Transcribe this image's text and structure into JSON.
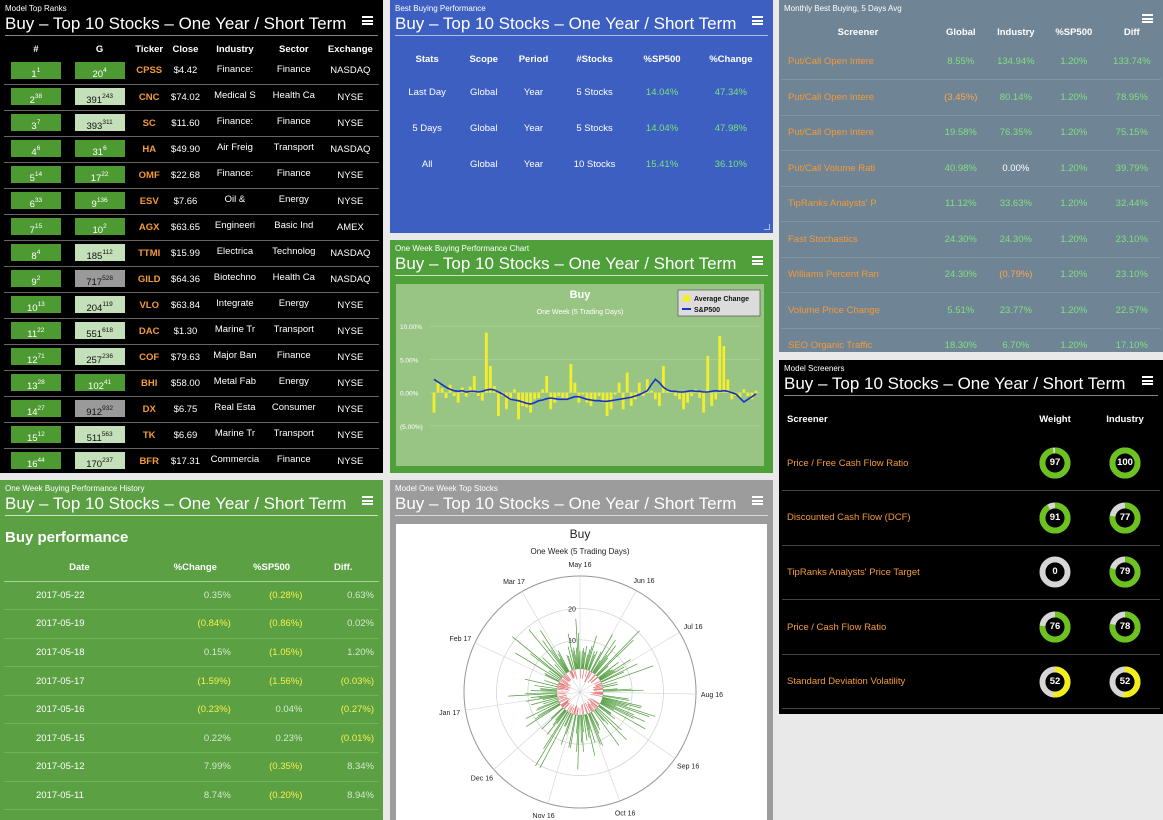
{
  "common_title": "Buy – Top 10 Stocks – One Year / Short Term",
  "top_ranks": {
    "tag": "Model Top Ranks",
    "headers": [
      "#",
      "G",
      "Ticker",
      "Close",
      "Industry",
      "Sector",
      "Exchange"
    ],
    "rows": [
      {
        "rank": "1",
        "rank_sup": "1",
        "g": "20",
        "g_sup": "4",
        "g_style": "dark",
        "ticker": "CPSS",
        "close": "$4.42",
        "industry": "Finance:",
        "sector": "Finance",
        "exchange": "NASDAQ"
      },
      {
        "rank": "2",
        "rank_sup": "38",
        "g": "391",
        "g_sup": "243",
        "g_style": "light",
        "ticker": "CNC",
        "close": "$74.02",
        "industry": "Medical S",
        "sector": "Health Ca",
        "exchange": "NYSE"
      },
      {
        "rank": "3",
        "rank_sup": "7",
        "g": "393",
        "g_sup": "311",
        "g_style": "light",
        "ticker": "SC",
        "close": "$11.60",
        "industry": "Finance:",
        "sector": "Finance",
        "exchange": "NYSE"
      },
      {
        "rank": "4",
        "rank_sup": "6",
        "g": "31",
        "g_sup": "6",
        "g_style": "dark",
        "ticker": "HA",
        "close": "$49.90",
        "industry": "Air Freig",
        "sector": "Transport",
        "exchange": "NASDAQ"
      },
      {
        "rank": "5",
        "rank_sup": "14",
        "g": "17",
        "g_sup": "22",
        "g_style": "dark",
        "ticker": "OMF",
        "close": "$22.68",
        "industry": "Finance:",
        "sector": "Finance",
        "exchange": "NYSE"
      },
      {
        "rank": "6",
        "rank_sup": "33",
        "g": "9",
        "g_sup": "136",
        "g_style": "dark",
        "ticker": "ESV",
        "close": "$7.66",
        "industry": "Oil &",
        "sector": "Energy",
        "exchange": "NYSE"
      },
      {
        "rank": "7",
        "rank_sup": "15",
        "g": "10",
        "g_sup": "2",
        "g_style": "dark",
        "ticker": "AGX",
        "close": "$63.65",
        "industry": "Engineeri",
        "sector": "Basic Ind",
        "exchange": "AMEX"
      },
      {
        "rank": "8",
        "rank_sup": "4",
        "g": "185",
        "g_sup": "112",
        "g_style": "light",
        "ticker": "TTMI",
        "close": "$15.99",
        "industry": "Electrica",
        "sector": "Technolog",
        "exchange": "NASDAQ"
      },
      {
        "rank": "9",
        "rank_sup": "2",
        "g": "717",
        "g_sup": "528",
        "g_style": "gray",
        "ticker": "GILD",
        "close": "$64.36",
        "industry": "Biotechno",
        "sector": "Health Ca",
        "exchange": "NASDAQ"
      },
      {
        "rank": "10",
        "rank_sup": "13",
        "g": "204",
        "g_sup": "119",
        "g_style": "light",
        "ticker": "VLO",
        "close": "$63.84",
        "industry": "Integrate",
        "sector": "Energy",
        "exchange": "NYSE"
      },
      {
        "rank": "11",
        "rank_sup": "22",
        "g": "551",
        "g_sup": "618",
        "g_style": "light",
        "ticker": "DAC",
        "close": "$1.30",
        "industry": "Marine Tr",
        "sector": "Transport",
        "exchange": "NYSE"
      },
      {
        "rank": "12",
        "rank_sup": "71",
        "g": "257",
        "g_sup": "236",
        "g_style": "light",
        "ticker": "COF",
        "close": "$79.63",
        "industry": "Major Ban",
        "sector": "Finance",
        "exchange": "NYSE"
      },
      {
        "rank": "13",
        "rank_sup": "28",
        "g": "102",
        "g_sup": "41",
        "g_style": "dark",
        "ticker": "BHI",
        "close": "$58.00",
        "industry": "Metal Fab",
        "sector": "Energy",
        "exchange": "NYSE"
      },
      {
        "rank": "14",
        "rank_sup": "27",
        "g": "912",
        "g_sup": "932",
        "g_style": "gray",
        "ticker": "DX",
        "close": "$6.75",
        "industry": "Real Esta",
        "sector": "Consumer",
        "exchange": "NYSE"
      },
      {
        "rank": "15",
        "rank_sup": "12",
        "g": "511",
        "g_sup": "563",
        "g_style": "light",
        "ticker": "TK",
        "close": "$6.69",
        "industry": "Marine Tr",
        "sector": "Transport",
        "exchange": "NYSE"
      },
      {
        "rank": "16",
        "rank_sup": "44",
        "g": "170",
        "g_sup": "237",
        "g_style": "light",
        "ticker": "BFR",
        "close": "$17.31",
        "industry": "Commercia",
        "sector": "Finance",
        "exchange": "NYSE"
      }
    ]
  },
  "best_buying": {
    "tag": "Best Buying Performance",
    "headers": [
      "Stats",
      "Scope",
      "Period",
      "#Stocks",
      "%SP500",
      "%Change"
    ],
    "rows": [
      [
        "Last Day",
        "Global",
        "Year",
        "5 Stocks",
        "14.04%",
        "47.34%"
      ],
      [
        "5 Days",
        "Global",
        "Year",
        "5 Stocks",
        "14.04%",
        "47.98%"
      ],
      [
        "All",
        "Global",
        "Year",
        "10 Stocks",
        "15.41%",
        "36.10%"
      ]
    ]
  },
  "monthly": {
    "tag": "Monthly Best Buying, 5 Days Avg",
    "headers": [
      "Screener",
      "Global",
      "Industry",
      "%SP500",
      "Diff"
    ],
    "rows": [
      {
        "name": "Put/Call Open Intere",
        "global": "8.55%",
        "global_c": "g",
        "industry": "134.94%",
        "industry_c": "g",
        "sp": "1.20%",
        "diff": "133.74%"
      },
      {
        "name": "Put/Call Open Intere",
        "global": "(3.45%)",
        "global_c": "o",
        "industry": "80.14%",
        "industry_c": "g",
        "sp": "1.20%",
        "diff": "78.95%"
      },
      {
        "name": "Put/Call Open Intere",
        "global": "19.58%",
        "global_c": "g",
        "industry": "76.35%",
        "industry_c": "g",
        "sp": "1.20%",
        "diff": "75.15%"
      },
      {
        "name": "Put/Call Volume Rati",
        "global": "40.98%",
        "global_c": "g",
        "industry": "0.00%",
        "industry_c": "w",
        "sp": "1.20%",
        "diff": "39.79%"
      },
      {
        "name": "TipRanks Analysts' P",
        "global": "11.12%",
        "global_c": "g",
        "industry": "33.63%",
        "industry_c": "g",
        "sp": "1.20%",
        "diff": "32.44%"
      },
      {
        "name": "Fast Stochastics",
        "global": "24.30%",
        "global_c": "g",
        "industry": "24.30%",
        "industry_c": "g",
        "sp": "1.20%",
        "diff": "23.10%"
      },
      {
        "name": "Williams Percent Ran",
        "global": "24.30%",
        "global_c": "g",
        "industry": "(0.79%)",
        "industry_c": "o",
        "sp": "1.20%",
        "diff": "23.10%"
      },
      {
        "name": "Volume Price Change",
        "global": "5.51%",
        "global_c": "g",
        "industry": "23.77%",
        "industry_c": "g",
        "sp": "1.20%",
        "diff": "22.57%"
      },
      {
        "name": "SEO Organic Traffic",
        "global": "18.30%",
        "global_c": "g",
        "industry": "6.70%",
        "industry_c": "g",
        "sp": "1.20%",
        "diff": "17.10%"
      }
    ]
  },
  "week_chart": {
    "tag": "One Week Buying Performance Chart",
    "chart_data": {
      "type": "bar",
      "title": "Buy",
      "subtitle": "One Week (5 Trading Days)",
      "ylim": [
        -5,
        10
      ],
      "yticks": [
        "10.00%",
        "5.00%",
        "0.00%",
        "(5.00%)"
      ],
      "legend": "top-right",
      "series": [
        {
          "name": "Average Change",
          "type": "bar",
          "color": "#f2ee2e",
          "values": [
            -3.0,
            1.5,
            0.7,
            -0.8,
            1.2,
            -0.5,
            -1.5,
            0.8,
            -0.6,
            0.9,
            2.5,
            -0.5,
            -1.2,
            9.0,
            4.0,
            1.0,
            -3.5,
            -0.5,
            -2.5,
            -1.0,
            0.5,
            -4.0,
            -2.0,
            -2.2,
            -3.0,
            -1.0,
            -0.8,
            0.5,
            2.5,
            -2.5,
            -1.5,
            -0.5,
            -0.8,
            -1.0,
            4.3,
            1.5,
            -1.5,
            -0.3,
            -1.5,
            -2.0,
            -1.0,
            -0.5,
            -1.5,
            -3.5,
            -2.5,
            -0.3,
            1.5,
            -2.5,
            3.0,
            -2.0,
            -1.0,
            1.5,
            -0.5,
            2.0,
            0.3,
            -1.0,
            -2.0,
            4.0,
            0.5,
            0.3,
            -0.5,
            -1.0,
            -2.5,
            -1.5,
            -0.5,
            0.5,
            -0.8,
            -3.0,
            5.5,
            -2.0,
            -1.0,
            8.5,
            7.0,
            2.0,
            -1.0,
            -0.5,
            -0.8,
            0.5,
            -0.5,
            -1.0,
            0.3
          ]
        },
        {
          "name": "S&P500",
          "type": "line",
          "color": "#1a32c4",
          "values": [
            2.0,
            1.6,
            1.2,
            0.8,
            0.5,
            0.3,
            0.2,
            0.3,
            0.1,
            0.2,
            0.2,
            0.1,
            0.2,
            0.4,
            0.5,
            0.4,
            0.1,
            -0.2,
            -0.6,
            -1.0,
            -1.1,
            -1.2,
            -1.4,
            -1.6,
            -1.7,
            -1.5,
            -1.2,
            -1.1,
            -0.9,
            -0.8,
            -0.9,
            -1.0,
            -1.0,
            -1.0,
            -0.8,
            -0.6,
            -0.6,
            -0.8,
            -1.0,
            -1.1,
            -1.2,
            -1.2,
            -1.3,
            -1.3,
            -1.2,
            -1.1,
            -1.0,
            -0.9,
            -0.8,
            -0.7,
            -0.5,
            -0.3,
            0.0,
            0.3,
            1.2,
            2.0,
            1.5,
            0.8,
            0.4,
            0.2,
            0.2,
            0.1,
            0.1,
            0.2,
            0.3,
            0.2,
            0.2,
            0.1,
            0.1,
            0.2,
            0.3,
            0.2,
            0.3,
            0.2,
            0.0,
            -0.2,
            -0.8,
            -1.4,
            -1.0,
            -0.6,
            -0.2
          ]
        }
      ]
    }
  },
  "screeners": {
    "tag": "Model Screeners",
    "headers": [
      "Screener",
      "Weight",
      "Industry"
    ],
    "rows": [
      {
        "name": "Price / Free Cash Flow Ratio",
        "weight": "97",
        "weight_v": 97,
        "weight_c": "#6cc21e",
        "industry": "100",
        "industry_v": 100,
        "industry_c": "#6cc21e"
      },
      {
        "name": "Discounted Cash Flow (DCF)",
        "weight": "91",
        "weight_v": 91,
        "weight_c": "#6cc21e",
        "industry": "77",
        "industry_v": 77,
        "industry_c": "#6cc21e"
      },
      {
        "name": "TipRanks Analysts' Price Target",
        "weight": "0",
        "weight_v": 0,
        "weight_c": "#6cc21e",
        "industry": "79",
        "industry_v": 79,
        "industry_c": "#6cc21e"
      },
      {
        "name": "Price / Cash Flow Ratio",
        "weight": "76",
        "weight_v": 76,
        "weight_c": "#6cc21e",
        "industry": "78",
        "industry_v": 78,
        "industry_c": "#6cc21e"
      },
      {
        "name": "Standard Deviation Volatility",
        "weight": "52",
        "weight_v": 52,
        "weight_c": "#f1ee1c",
        "industry": "52",
        "industry_v": 52,
        "industry_c": "#f1ee1c"
      }
    ]
  },
  "history": {
    "tag": "One Week Buying Performance History",
    "subtitle": "Buy performance",
    "headers": [
      "Date",
      "%Change",
      "%SP500",
      "Diff."
    ],
    "rows": [
      {
        "date": "2017-05-22",
        "change": "0.35%",
        "change_c": "muted",
        "sp": "(0.28%)",
        "sp_c": "y",
        "diff": "0.63%",
        "diff_c": "muted"
      },
      {
        "date": "2017-05-19",
        "change": "(0.84%)",
        "change_c": "y",
        "sp": "(0.86%)",
        "sp_c": "y",
        "diff": "0.02%",
        "diff_c": "muted"
      },
      {
        "date": "2017-05-18",
        "change": "0.15%",
        "change_c": "muted",
        "sp": "(1.05%)",
        "sp_c": "y",
        "diff": "1.20%",
        "diff_c": "muted"
      },
      {
        "date": "2017-05-17",
        "change": "(1.59%)",
        "change_c": "y",
        "sp": "(1.56%)",
        "sp_c": "y",
        "diff": "(0.03%)",
        "diff_c": "y"
      },
      {
        "date": "2017-05-16",
        "change": "(0.23%)",
        "change_c": "y",
        "sp": "0.04%",
        "sp_c": "muted",
        "diff": "(0.27%)",
        "diff_c": "y"
      },
      {
        "date": "2017-05-15",
        "change": "0.22%",
        "change_c": "muted",
        "sp": "0.23%",
        "sp_c": "muted",
        "diff": "(0.01%)",
        "diff_c": "y"
      },
      {
        "date": "2017-05-12",
        "change": "7.99%",
        "change_c": "muted",
        "sp": "(0.35%)",
        "sp_c": "y",
        "diff": "8.34%",
        "diff_c": "muted"
      },
      {
        "date": "2017-05-11",
        "change": "8.74%",
        "change_c": "muted",
        "sp": "(0.20%)",
        "sp_c": "y",
        "diff": "8.94%",
        "diff_c": "muted"
      }
    ]
  },
  "top_stocks": {
    "tag": "Model One Week Top Stocks",
    "chart_data": {
      "type": "polar",
      "title": "Buy",
      "subtitle": "One Week (5 Trading Days)",
      "radial_ticks": [
        "10",
        "20"
      ],
      "months": [
        "May 16",
        "Jun 16",
        "Jul 16",
        "Aug 16",
        "Sep 16",
        "Oct 16",
        "Nov 16",
        "Dec 16",
        "Jan 17",
        "Feb 17",
        "Mar 17"
      ]
    }
  }
}
